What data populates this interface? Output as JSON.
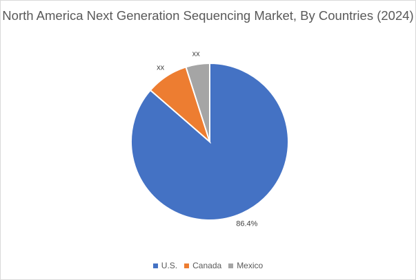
{
  "chart_data": {
    "type": "pie",
    "title": "North America Next Generation Sequencing Market, By Countries (2024)",
    "categories": [
      "U.S.",
      "Canada",
      "Mexico"
    ],
    "values": [
      86.4,
      8.7,
      4.9
    ],
    "data_labels": [
      "86.4%",
      "xx",
      "xx"
    ],
    "colors": [
      "#4472C4",
      "#ED7D31",
      "#A5A5A5"
    ],
    "legend_position": "bottom"
  }
}
